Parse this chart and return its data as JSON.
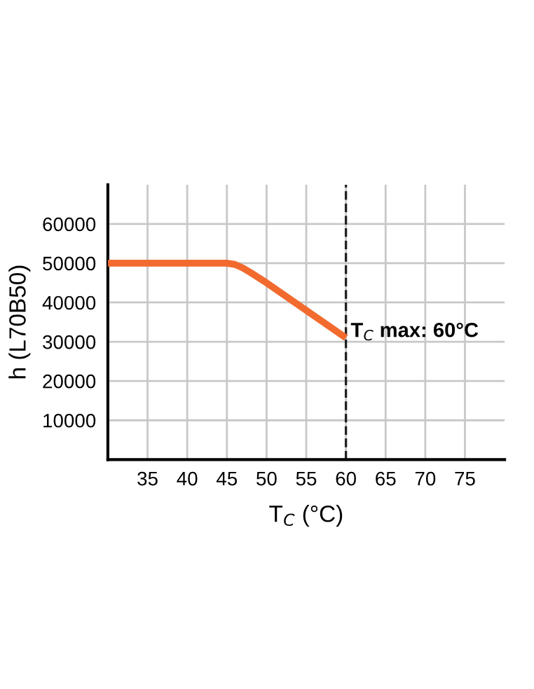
{
  "chart_data": {
    "type": "line",
    "xlabel": "T$_{C}$ (°C)",
    "ylabel": "h (L70B50)",
    "series": [
      {
        "color": "#f26a2e",
        "x": [
          30,
          45,
          46,
          47,
          48,
          50,
          55,
          60
        ],
        "values": [
          50000,
          50000,
          49700,
          48800,
          47600,
          45000,
          38000,
          31000
        ]
      }
    ],
    "xlim": [
      30,
      80
    ],
    "ylim": [
      0,
      70000
    ],
    "xticks": [
      35,
      40,
      45,
      50,
      55,
      60,
      65,
      70,
      75
    ],
    "yticks": [
      10000,
      20000,
      30000,
      40000,
      50000,
      60000
    ],
    "grid": true,
    "line_style": "solid",
    "marker": "none",
    "ref_lines": [
      {
        "axis": "x",
        "value": 60,
        "label": "T$_{C}$ max: 60°C",
        "color": "#222222",
        "line_style": "dashed"
      }
    ]
  }
}
